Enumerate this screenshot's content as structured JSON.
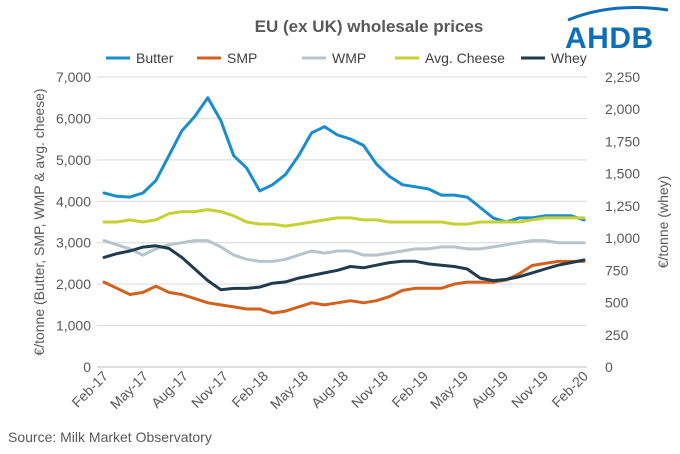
{
  "logo": {
    "text": "AHDB"
  },
  "source": "Source:  Milk Market Observatory",
  "chart_data": {
    "type": "line",
    "title": "EU (ex UK) wholesale prices",
    "ylabel": "€/tonne (Butter, SMP, WMP & avg. cheese)",
    "y2label": "€/tonne  (whey)",
    "ylim": [
      0,
      7000
    ],
    "y2lim": [
      0,
      2250
    ],
    "yticks": [
      "0",
      "1,000",
      "2,000",
      "3,000",
      "4,000",
      "5,000",
      "6,000",
      "7,000"
    ],
    "y2ticks": [
      "0",
      "250",
      "500",
      "750",
      "1,000",
      "1,250",
      "1,500",
      "1,750",
      "2,000",
      "2,250"
    ],
    "xticks": [
      "Feb-17",
      "May-17",
      "Aug-17",
      "Nov-17",
      "Feb-18",
      "May-18",
      "Aug-18",
      "Nov-18",
      "Feb-19",
      "May-19",
      "Aug-19",
      "Nov-19",
      "Feb-20"
    ],
    "x_step": "biweekly",
    "grid": true,
    "legend_position": "top",
    "series": [
      {
        "name": "Butter",
        "axis": "left",
        "color": "#1a8ccf",
        "values": [
          4200,
          4120,
          4100,
          4200,
          4500,
          5100,
          5700,
          6050,
          6500,
          5950,
          5100,
          4800,
          4250,
          4400,
          4650,
          5100,
          5650,
          5800,
          5600,
          5500,
          5350,
          4900,
          4600,
          4400,
          4350,
          4300,
          4150,
          4150,
          4100,
          3850,
          3600,
          3500,
          3600,
          3600,
          3650,
          3650,
          3650,
          3550
        ]
      },
      {
        "name": "SMP",
        "axis": "left",
        "color": "#d2611d",
        "values": [
          2050,
          1900,
          1750,
          1800,
          1950,
          1800,
          1750,
          1650,
          1550,
          1500,
          1450,
          1400,
          1400,
          1300,
          1350,
          1450,
          1550,
          1500,
          1550,
          1600,
          1550,
          1600,
          1700,
          1850,
          1900,
          1900,
          1900,
          2000,
          2050,
          2050,
          2050,
          2100,
          2250,
          2450,
          2500,
          2550,
          2550,
          2550
        ]
      },
      {
        "name": "WMP",
        "axis": "left",
        "color": "#b8c4cb",
        "values": [
          3050,
          2950,
          2850,
          2700,
          2850,
          2950,
          3000,
          3050,
          3050,
          2900,
          2700,
          2600,
          2550,
          2550,
          2600,
          2700,
          2800,
          2750,
          2800,
          2800,
          2700,
          2700,
          2750,
          2800,
          2850,
          2850,
          2900,
          2900,
          2850,
          2850,
          2900,
          2950,
          3000,
          3050,
          3050,
          3000,
          3000,
          3000
        ]
      },
      {
        "name": "Avg. Cheese",
        "axis": "left",
        "color": "#c4d232",
        "values": [
          3500,
          3500,
          3550,
          3500,
          3550,
          3700,
          3750,
          3750,
          3800,
          3750,
          3650,
          3500,
          3450,
          3450,
          3400,
          3450,
          3500,
          3550,
          3600,
          3600,
          3550,
          3550,
          3500,
          3500,
          3500,
          3500,
          3500,
          3450,
          3450,
          3500,
          3500,
          3500,
          3500,
          3550,
          3600,
          3600,
          3600,
          3600
        ]
      },
      {
        "name": "Whey",
        "axis": "right",
        "color": "#1f3b4f",
        "values": [
          850,
          880,
          900,
          930,
          940,
          920,
          850,
          760,
          670,
          600,
          610,
          610,
          620,
          650,
          660,
          690,
          710,
          730,
          750,
          780,
          770,
          790,
          810,
          820,
          820,
          800,
          790,
          780,
          760,
          690,
          670,
          680,
          700,
          730,
          760,
          790,
          810,
          830
        ]
      }
    ]
  }
}
